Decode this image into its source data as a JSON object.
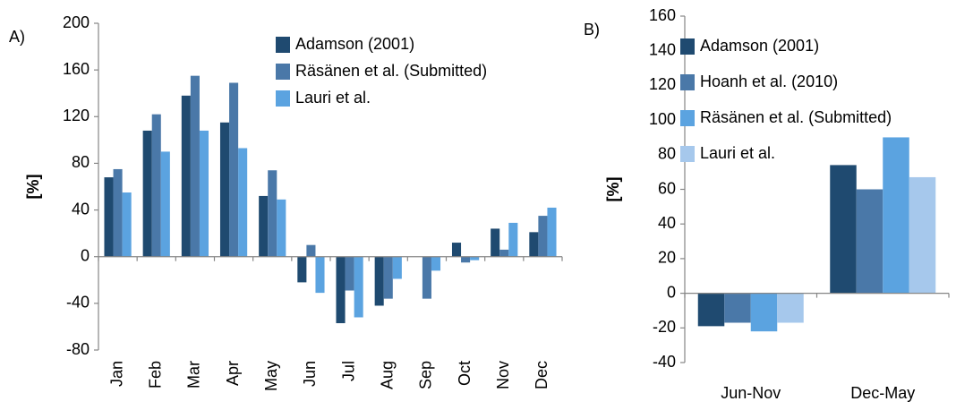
{
  "chart_data": [
    {
      "type": "bar",
      "panel_label": "A)",
      "y_label": "[%]",
      "categories": [
        "Jan",
        "Feb",
        "Mar",
        "Apr",
        "May",
        "Jun",
        "Jul",
        "Aug",
        "Sep",
        "Oct",
        "Nov",
        "Dec"
      ],
      "series": [
        {
          "name": "Adamson (2001)",
          "color": "#1f4a70",
          "values": [
            68,
            108,
            138,
            115,
            52,
            -22,
            -57,
            -42,
            0,
            12,
            24,
            21
          ]
        },
        {
          "name": "Räsänen et al. (Submitted)",
          "color": "#4a78a8",
          "values": [
            75,
            122,
            155,
            149,
            74,
            10,
            -29,
            -36,
            -36,
            -5,
            6,
            35
          ]
        },
        {
          "name": "Lauri et al.",
          "color": "#5ba3e0",
          "values": [
            55,
            90,
            108,
            93,
            49,
            -31,
            -52,
            -19,
            -12,
            -3,
            29,
            42
          ]
        }
      ],
      "ylim": [
        -80,
        200
      ],
      "yticks": [
        -80,
        -40,
        0,
        40,
        80,
        120,
        160,
        200
      ],
      "legend": "top-right"
    },
    {
      "type": "bar",
      "panel_label": "B)",
      "y_label": "[%]",
      "categories": [
        "Jun-Nov",
        "Dec-May"
      ],
      "series": [
        {
          "name": "Adamson (2001)",
          "color": "#1f4a70",
          "values": [
            -19,
            74
          ]
        },
        {
          "name": "Hoanh et al. (2010)",
          "color": "#4a78a8",
          "values": [
            -17,
            60
          ]
        },
        {
          "name": "Räsänen et al. (Submitted)",
          "color": "#5ba3e0",
          "values": [
            -22,
            90
          ]
        },
        {
          "name": "Lauri et al.",
          "color": "#a6c8ec",
          "values": [
            -17,
            67
          ]
        }
      ],
      "ylim": [
        -40,
        160
      ],
      "yticks": [
        -40,
        -20,
        0,
        20,
        40,
        60,
        80,
        100,
        120,
        140,
        160
      ],
      "legend": "top-left"
    }
  ]
}
